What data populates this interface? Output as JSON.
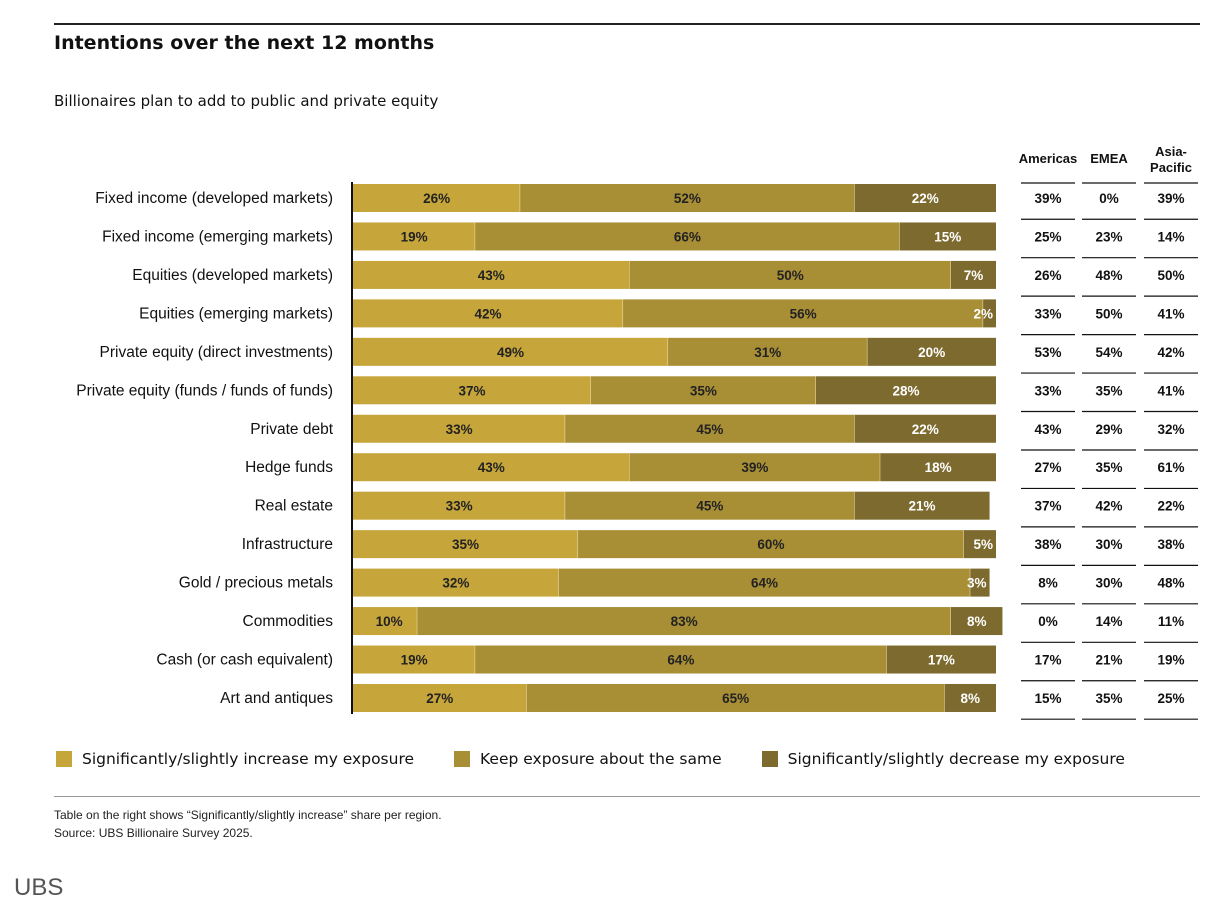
{
  "title": "Intentions over the next 12 months",
  "subtitle": "Billionaires plan to add to public and private equity",
  "chart_data": {
    "type": "bar",
    "orientation": "horizontal",
    "stacked": true,
    "categories": [
      "Fixed income (developed markets)",
      "Fixed income (emerging markets)",
      "Equities (developed markets)",
      "Equities (emerging markets)",
      "Private equity (direct investments)",
      "Private equity (funds / funds of funds)",
      "Private debt",
      "Hedge funds",
      "Real estate",
      "Infrastructure",
      "Gold / precious metals",
      "Commodities",
      "Cash (or cash equivalent)",
      "Art and antiques"
    ],
    "series": [
      {
        "name": "Significantly/slightly increase my exposure",
        "color": "#c6a53a",
        "values": [
          26,
          19,
          43,
          42,
          49,
          37,
          33,
          43,
          33,
          35,
          32,
          10,
          19,
          27
        ]
      },
      {
        "name": "Keep exposure about the same",
        "color": "#a88e35",
        "values": [
          52,
          66,
          50,
          56,
          31,
          35,
          45,
          39,
          45,
          60,
          64,
          83,
          64,
          65
        ]
      },
      {
        "name": "Significantly/slightly decrease my exposure",
        "color": "#7d6a2e",
        "values": [
          22,
          15,
          7,
          2,
          20,
          28,
          22,
          18,
          21,
          5,
          3,
          8,
          17,
          8
        ]
      }
    ],
    "unit": "%",
    "legend": "bottom",
    "grid": false,
    "table": {
      "columns": [
        "Americas",
        "EMEA",
        "Asia-\nPacific"
      ],
      "rows": [
        [
          "39%",
          "0%",
          "39%"
        ],
        [
          "25%",
          "23%",
          "14%"
        ],
        [
          "26%",
          "48%",
          "50%"
        ],
        [
          "33%",
          "50%",
          "41%"
        ],
        [
          "53%",
          "54%",
          "42%"
        ],
        [
          "33%",
          "35%",
          "41%"
        ],
        [
          "43%",
          "29%",
          "32%"
        ],
        [
          "27%",
          "35%",
          "61%"
        ],
        [
          "37%",
          "42%",
          "22%"
        ],
        [
          "38%",
          "30%",
          "38%"
        ],
        [
          "8%",
          "30%",
          "48%"
        ],
        [
          "0%",
          "14%",
          "11%"
        ],
        [
          "17%",
          "21%",
          "19%"
        ],
        [
          "15%",
          "35%",
          "25%"
        ]
      ]
    }
  },
  "footnote": "Table on the right shows “Significantly/slightly increase” share per region.",
  "source": "Source: UBS Billionaire Survey 2025.",
  "logo": "UBS"
}
